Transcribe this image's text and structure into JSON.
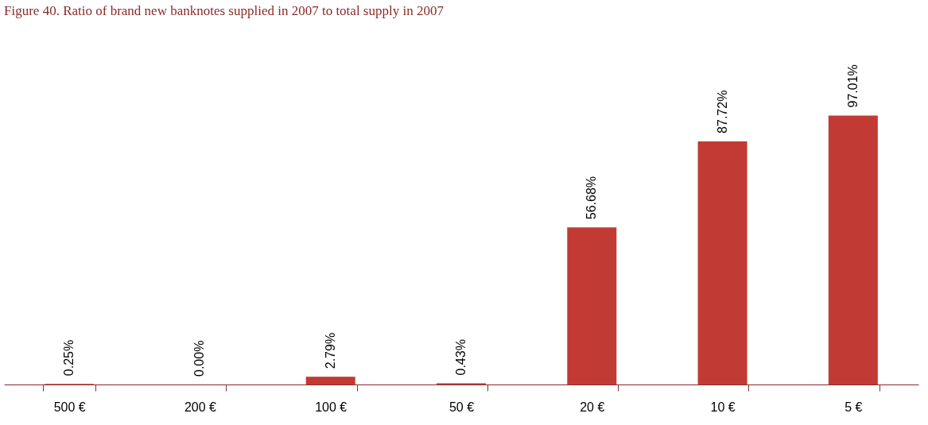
{
  "chart_data": {
    "type": "bar",
    "title": "Figure 40. Ratio of brand new banknotes supplied in 2007 to total supply in 2007",
    "categories": [
      "500 €",
      "200 €",
      "100 €",
      "50 €",
      "20 €",
      "10 €",
      "5 €"
    ],
    "values": [
      0.25,
      0.0,
      2.79,
      0.43,
      56.68,
      87.72,
      97.01
    ],
    "value_labels": [
      "0.25%",
      "0.00%",
      "2.79%",
      "0.43%",
      "56.68%",
      "87.72%",
      "97.01%"
    ],
    "color": "#c23a34",
    "grid": false
  }
}
